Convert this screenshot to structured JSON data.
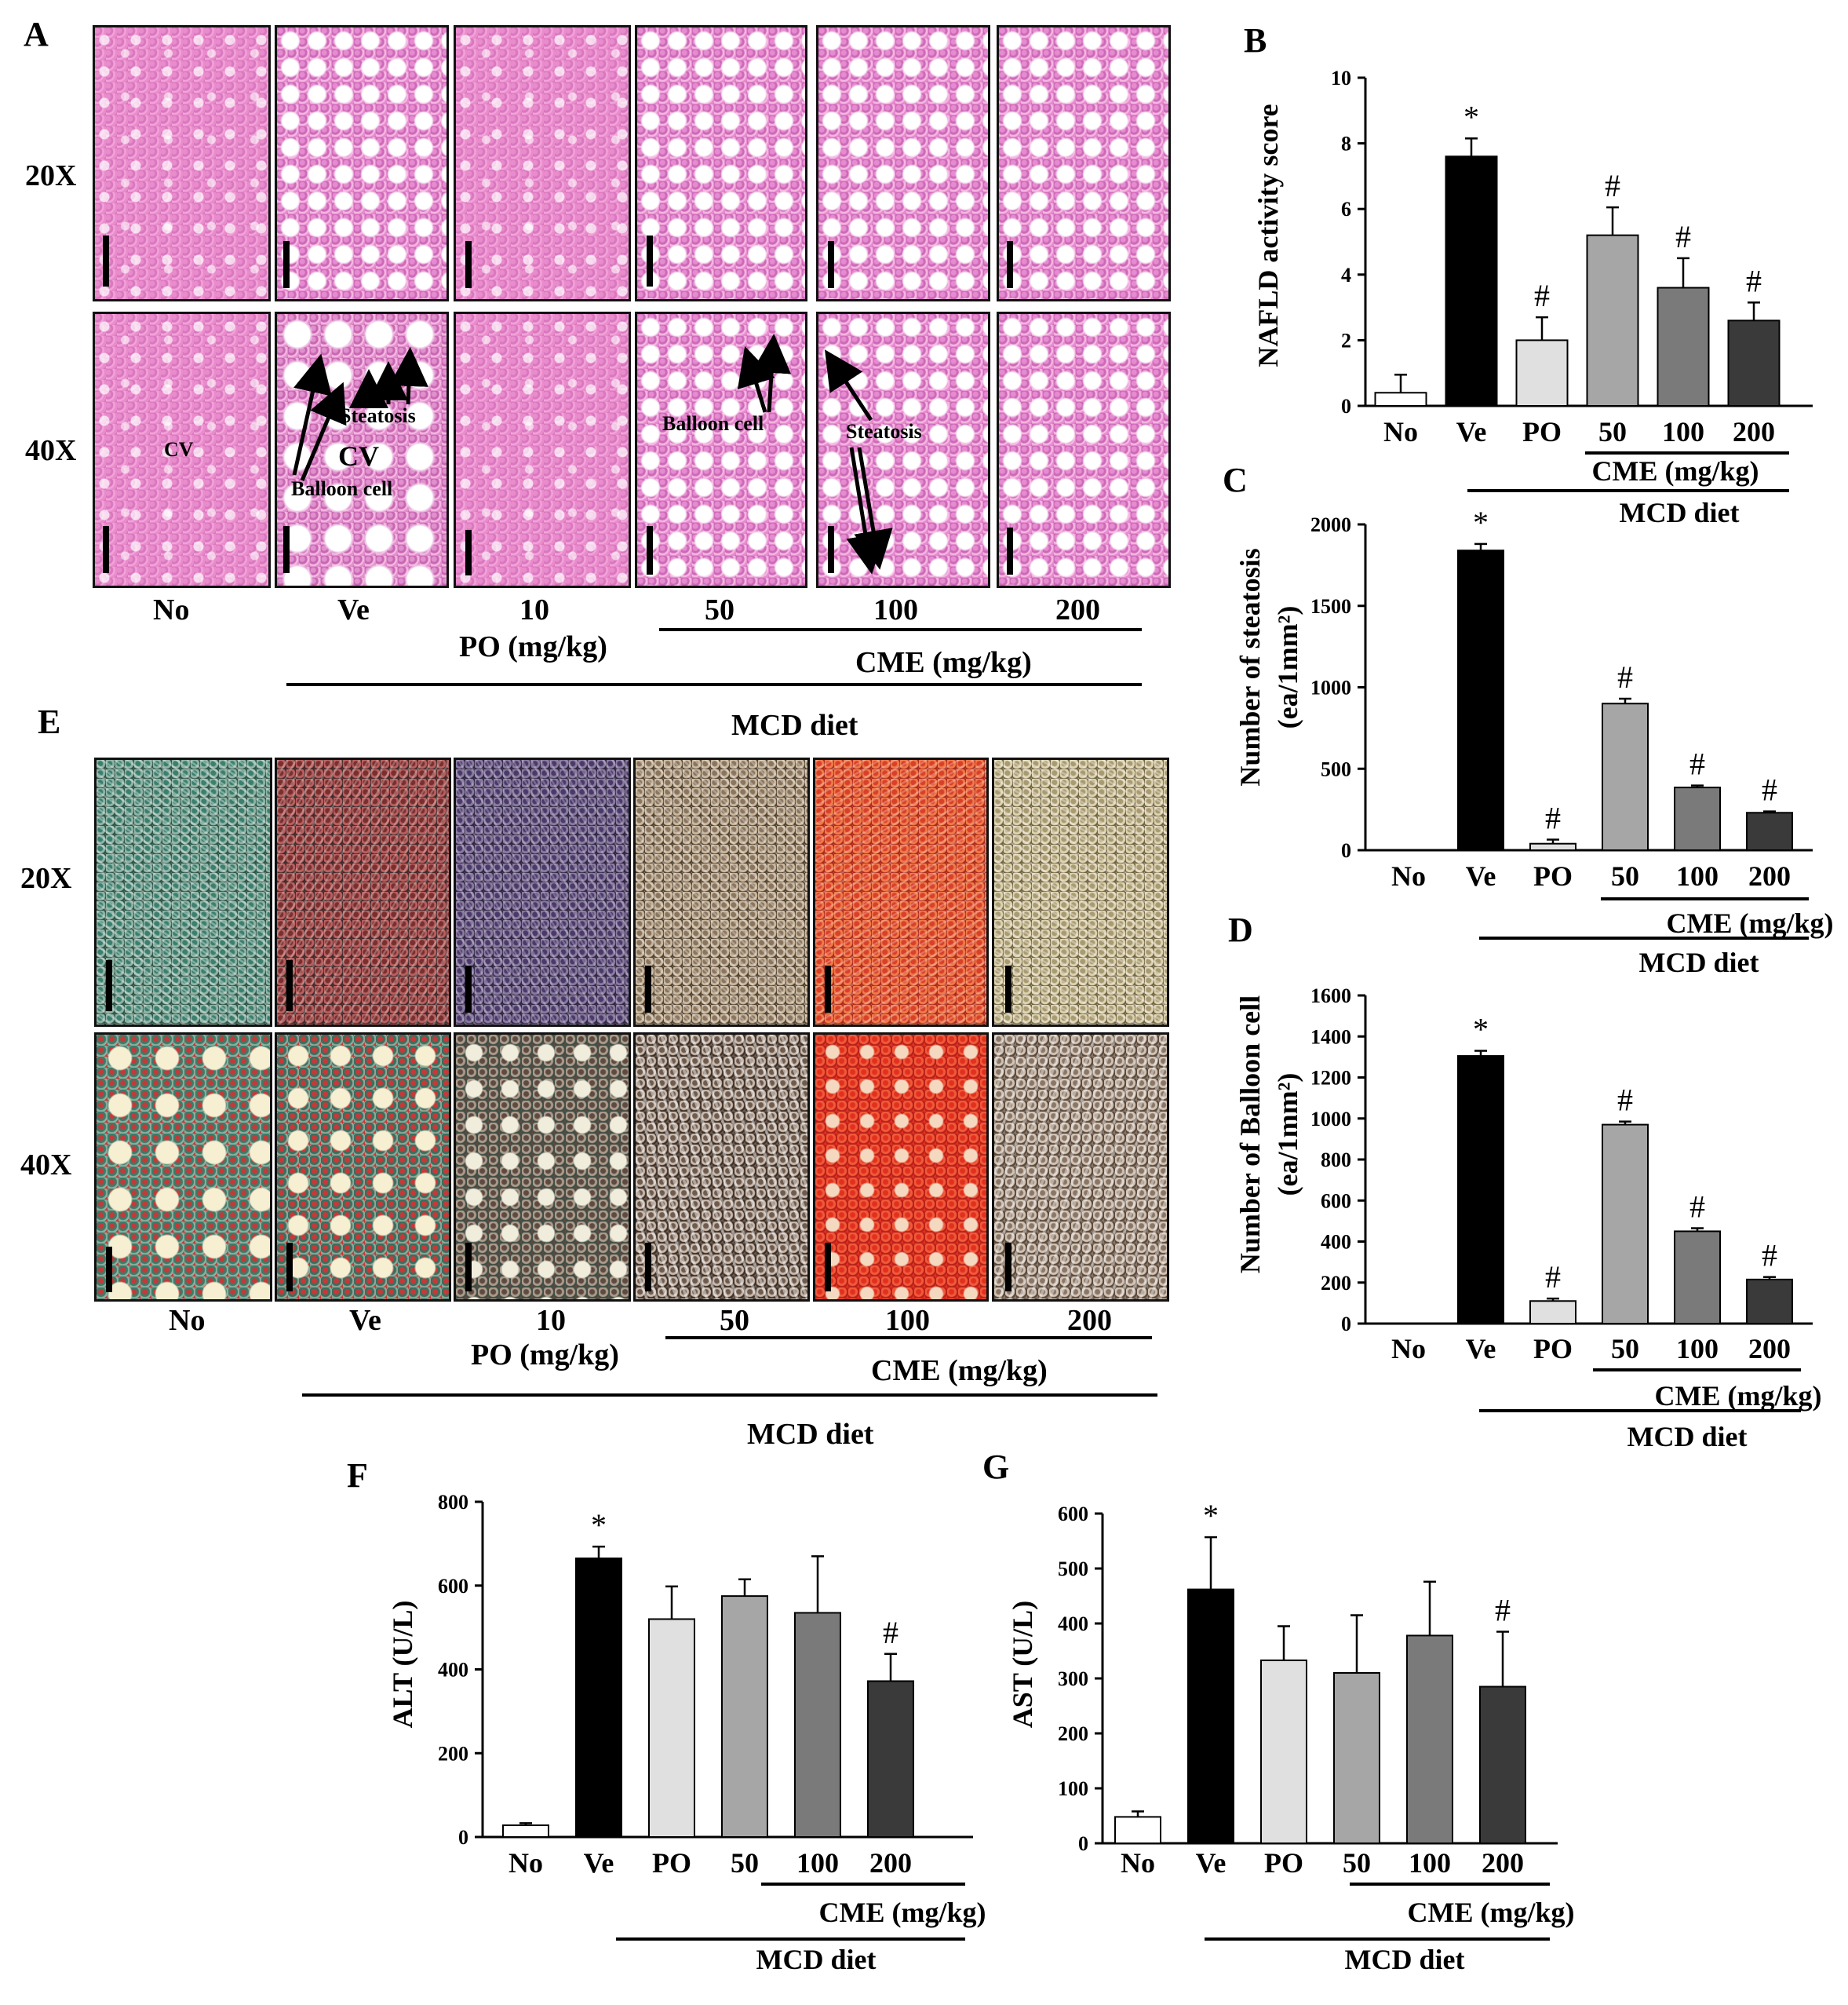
{
  "figure": {
    "panel_a": {
      "letter": "A",
      "magnifications": [
        "20X",
        "40X"
      ],
      "groups": [
        "No",
        "Ve",
        "10",
        "50",
        "100",
        "200"
      ],
      "po_label": "PO (mg/kg)",
      "cme_label": "CME (mg/kg)",
      "diet_label": "MCD diet",
      "annotations": {
        "cv1": "CV",
        "cv2": "CV",
        "steatosis_ve": "Steatosis",
        "balloon_ve": "Balloon cell",
        "balloon_50": "Balloon cell",
        "steatosis_100": "Steatosis"
      }
    },
    "panel_e": {
      "letter": "E",
      "magnifications": [
        "20X",
        "40X"
      ],
      "groups": [
        "No",
        "Ve",
        "10",
        "50",
        "100",
        "200"
      ],
      "po_label": "PO (mg/kg)",
      "cme_label": "CME (mg/kg)",
      "diet_label": "MCD diet"
    }
  },
  "chart_data": [
    {
      "panel": "B",
      "type": "bar",
      "ylabel": "NAFLD activity score",
      "categories": [
        "No",
        "Ve",
        "PO",
        "50",
        "100",
        "200"
      ],
      "values": [
        0.4,
        7.6,
        2.0,
        5.2,
        3.6,
        2.6
      ],
      "errors": [
        0.55,
        0.55,
        0.7,
        0.85,
        0.9,
        0.55
      ],
      "markers": [
        "",
        "*",
        "#",
        "#",
        "#",
        "#"
      ],
      "ylim": [
        0,
        10
      ],
      "yticks": [
        0,
        2,
        4,
        6,
        8,
        10
      ],
      "group_label": "CME (mg/kg)",
      "diet_label": "MCD diet"
    },
    {
      "panel": "C",
      "type": "bar",
      "ylabel_line1": "Number of steatosis",
      "ylabel_line2": "(ea/1mm²)",
      "categories": [
        "No",
        "Ve",
        "PO",
        "50",
        "100",
        "200"
      ],
      "values": [
        0,
        1840,
        40,
        900,
        385,
        230
      ],
      "errors": [
        0,
        40,
        25,
        30,
        12,
        8
      ],
      "markers": [
        "",
        "*",
        "#",
        "#",
        "#",
        "#"
      ],
      "ylim": [
        0,
        2000
      ],
      "yticks": [
        0,
        500,
        1000,
        1500,
        2000
      ],
      "group_label": "CME (mg/kg)",
      "diet_label": "MCD diet"
    },
    {
      "panel": "D",
      "type": "bar",
      "ylabel_line1": "Number of Balloon cell",
      "ylabel_line2": "(ea/1mm²)",
      "categories": [
        "No",
        "Ve",
        "PO",
        "50",
        "100",
        "200"
      ],
      "values": [
        0,
        1305,
        110,
        970,
        450,
        215
      ],
      "errors": [
        0,
        25,
        12,
        15,
        15,
        12
      ],
      "markers": [
        "",
        "*",
        "#",
        "#",
        "#",
        "#"
      ],
      "ylim": [
        0,
        1600
      ],
      "yticks": [
        0,
        200,
        400,
        600,
        800,
        1000,
        1200,
        1400,
        1600
      ],
      "group_label": "CME (mg/kg)",
      "diet_label": "MCD diet"
    },
    {
      "panel": "F",
      "type": "bar",
      "ylabel": "ALT (U/L)",
      "categories": [
        "No",
        "Ve",
        "PO",
        "50",
        "100",
        "200"
      ],
      "values": [
        28,
        665,
        520,
        575,
        535,
        372
      ],
      "errors": [
        5,
        28,
        78,
        40,
        135,
        65
      ],
      "markers": [
        "",
        "*",
        "",
        "",
        "",
        "#"
      ],
      "ylim": [
        0,
        800
      ],
      "yticks": [
        0,
        200,
        400,
        600,
        800
      ],
      "group_label": "CME (mg/kg)",
      "diet_label": "MCD diet"
    },
    {
      "panel": "G",
      "type": "bar",
      "ylabel": "AST (U/L)",
      "categories": [
        "No",
        "Ve",
        "PO",
        "50",
        "100",
        "200"
      ],
      "values": [
        48,
        462,
        333,
        310,
        378,
        285
      ],
      "errors": [
        10,
        95,
        62,
        105,
        98,
        100
      ],
      "markers": [
        "",
        "*",
        "",
        "",
        "",
        "#"
      ],
      "ylim": [
        0,
        600
      ],
      "yticks": [
        0,
        100,
        200,
        300,
        400,
        500,
        600
      ],
      "group_label": "CME (mg/kg)",
      "diet_label": "MCD diet"
    }
  ],
  "bar_colors": [
    "#ffffff",
    "#000000",
    "#e0e0e0",
    "#a6a6a6",
    "#7a7a7a",
    "#3a3a3a"
  ]
}
